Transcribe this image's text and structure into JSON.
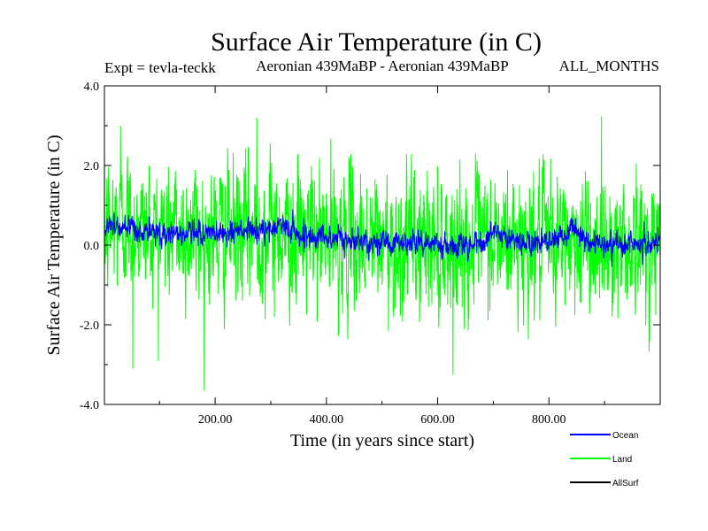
{
  "chart_data": {
    "type": "line",
    "title": "Surface Air Temperature (in C)",
    "subtitle_left": "Expt = tevla-teckk",
    "subtitle_center": "Aeronian 439MaBP - Aeronian 439MaBP",
    "subtitle_right": "ALL_MONTHS",
    "xlabel": "Time (in years since start)",
    "ylabel": "Surface Air Temperature (in C)",
    "xlim": [
      1,
      1000
    ],
    "ylim": [
      -4.0,
      4.0
    ],
    "x_ticks": [
      200,
      400,
      600,
      800
    ],
    "x_tick_labels": [
      "200.00",
      "400.00",
      "600.00",
      "800.00"
    ],
    "y_ticks": [
      -4,
      -2,
      0,
      2,
      4
    ],
    "y_tick_labels": [
      "-4.0",
      "-2.0",
      "0.0",
      "2.0",
      "4.0"
    ],
    "series": [
      {
        "name": "Land",
        "color": "#00ff00",
        "anchor_x": [
          1,
          25,
          50,
          100,
          150,
          200,
          250,
          300,
          320,
          350,
          400,
          450,
          500,
          550,
          600,
          650,
          700,
          750,
          800,
          830,
          850,
          900,
          950,
          1000
        ],
        "anchor_mean": [
          0.3,
          0.6,
          0.5,
          0.4,
          0.3,
          0.3,
          0.3,
          0.35,
          0.4,
          0.2,
          0.15,
          0.1,
          0.1,
          0.05,
          0.05,
          0.0,
          0.1,
          0.05,
          0.05,
          0.2,
          0.1,
          0.1,
          0.05,
          0.05
        ],
        "noise_sd": 0.85,
        "annotated_extremes": [
          {
            "x": 52,
            "y": -3.1
          },
          {
            "x": 275,
            "y": 3.2
          },
          {
            "x": 30,
            "y": 3.0
          }
        ]
      },
      {
        "name": "Ocean",
        "color": "#0000ff",
        "anchor_x": [
          1,
          10,
          25,
          50,
          100,
          150,
          200,
          250,
          300,
          320,
          350,
          400,
          450,
          500,
          550,
          600,
          650,
          680,
          700,
          750,
          800,
          830,
          840,
          870,
          900,
          950,
          1000
        ],
        "anchor_mean": [
          0.3,
          0.6,
          0.45,
          0.35,
          0.3,
          0.3,
          0.3,
          0.35,
          0.35,
          0.55,
          0.25,
          0.2,
          0.1,
          0.1,
          0.05,
          0.05,
          0.0,
          0.05,
          0.3,
          0.05,
          0.05,
          0.2,
          0.45,
          0.1,
          0.05,
          0.05,
          0.05
        ],
        "noise_sd": 0.15
      },
      {
        "name": "AllSurf",
        "color": "#000000",
        "anchor_x": [
          1,
          1000
        ],
        "anchor_mean": [
          0.1,
          0.1
        ],
        "noise_sd": 0.0,
        "visible": false
      }
    ],
    "legend": [
      "Ocean",
      "Land",
      "AllSurf"
    ],
    "legend_position": "bottom-right"
  }
}
